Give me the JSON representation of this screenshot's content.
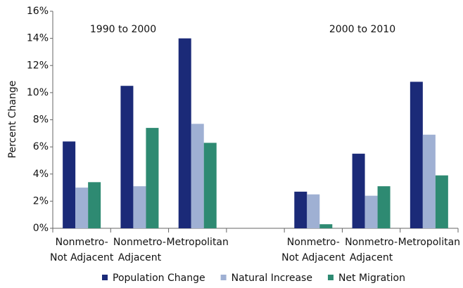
{
  "chart_data": {
    "type": "bar",
    "y_label": "Percent Change",
    "annotations": [
      "1990 to 2000",
      "2000 to 2010"
    ],
    "categories": [
      [
        "Nonmetro-",
        "Not Adjacent"
      ],
      [
        "Nonmetro-",
        "Adjacent"
      ],
      [
        "Metropolitan"
      ],
      null,
      [
        "Nonmetro-",
        "Not Adjacent"
      ],
      [
        "Nonmetro-",
        "Adjacent"
      ],
      [
        "Metropolitan"
      ]
    ],
    "series": [
      {
        "name": "Population Change",
        "color": "#1b2a78",
        "values": [
          6.4,
          10.5,
          14.0,
          null,
          2.7,
          5.5,
          10.8
        ]
      },
      {
        "name": "Natural Increase",
        "color": "#9fb0d3",
        "values": [
          3.0,
          3.1,
          7.7,
          null,
          2.5,
          2.4,
          6.9
        ]
      },
      {
        "name": "Net Migration",
        "color": "#2e8a72",
        "values": [
          3.4,
          7.4,
          6.3,
          null,
          0.3,
          3.1,
          3.9
        ]
      }
    ],
    "ylim": [
      0,
      16
    ],
    "yticks": [
      {
        "value": 0,
        "label": "0%"
      },
      {
        "value": 2,
        "label": "2%"
      },
      {
        "value": 4,
        "label": "4%"
      },
      {
        "value": 6,
        "label": "6%"
      },
      {
        "value": 8,
        "label": "8%"
      },
      {
        "value": 10,
        "label": "10%"
      },
      {
        "value": 12,
        "label": "12%"
      },
      {
        "value": 14,
        "label": "14%"
      },
      {
        "value": 16,
        "label": "16%"
      }
    ]
  }
}
